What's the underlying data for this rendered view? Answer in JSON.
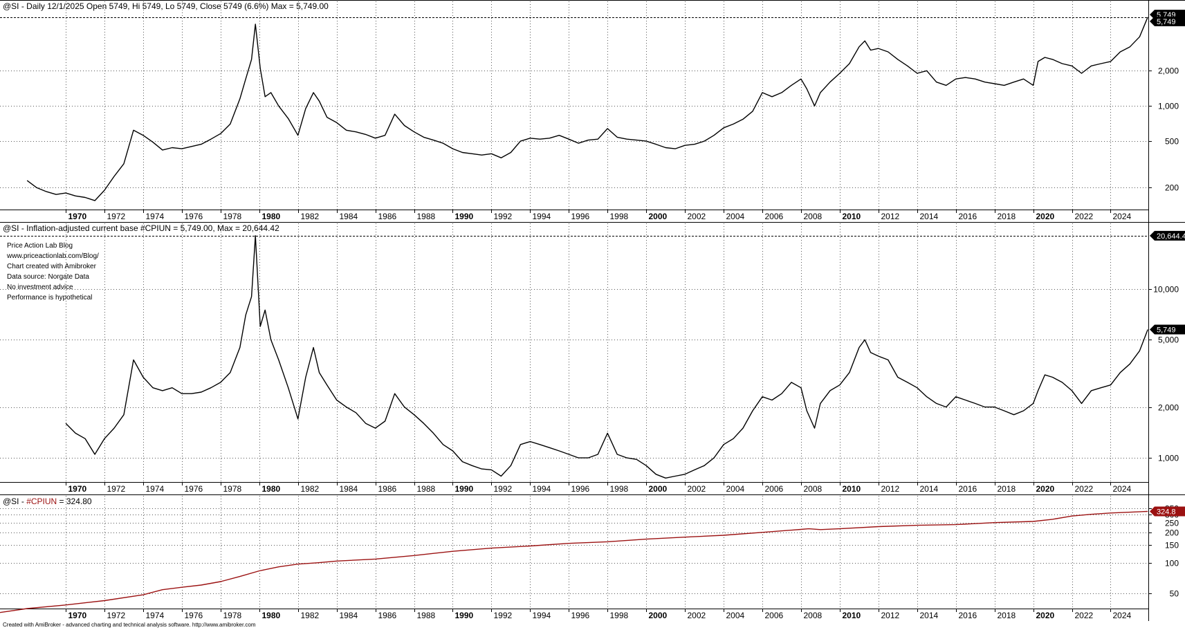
{
  "chart_data": [
    {
      "type": "line",
      "log_scale": true,
      "grid": true,
      "title": "@SI - Daily 12/1/2025 Open 5749, Hi 5749, Lo 5749, Close 5749 (6.6%) Max  = 5,749.00",
      "ylim": [
        130,
        6300
      ],
      "y_ticks": [
        200,
        500,
        1000,
        2000
      ],
      "y_tick_labels": [
        "200",
        "500",
        "1,000",
        "2,000"
      ],
      "last_badges": [
        "5,749",
        "5,749"
      ],
      "line_color": "#000000",
      "x": [
        1968.0,
        1968.5,
        1969.0,
        1969.5,
        1970.0,
        1970.5,
        1971.0,
        1971.5,
        1972.0,
        1972.5,
        1973.0,
        1973.5,
        1974.0,
        1974.5,
        1975.0,
        1975.5,
        1976.0,
        1976.5,
        1977.0,
        1977.5,
        1978.0,
        1978.5,
        1979.0,
        1979.3,
        1979.6,
        1979.8,
        1980.05,
        1980.3,
        1980.6,
        1981.0,
        1981.5,
        1982.0,
        1982.4,
        1982.8,
        1983.1,
        1983.5,
        1984.0,
        1984.5,
        1985.0,
        1985.5,
        1986.0,
        1986.5,
        1987.0,
        1987.5,
        1988.0,
        1988.5,
        1989.0,
        1989.5,
        1990.0,
        1990.5,
        1991.0,
        1991.5,
        1992.0,
        1992.5,
        1993.0,
        1993.5,
        1994.0,
        1994.5,
        1995.0,
        1995.5,
        1996.0,
        1996.5,
        1997.0,
        1997.5,
        1998.0,
        1998.5,
        1999.0,
        1999.5,
        2000.0,
        2000.5,
        2001.0,
        2001.5,
        2002.0,
        2002.5,
        2003.0,
        2003.5,
        2004.0,
        2004.5,
        2005.0,
        2005.5,
        2006.0,
        2006.5,
        2007.0,
        2007.5,
        2008.0,
        2008.3,
        2008.7,
        2009.0,
        2009.5,
        2010.0,
        2010.5,
        2011.0,
        2011.3,
        2011.6,
        2012.0,
        2012.5,
        2013.0,
        2013.5,
        2014.0,
        2014.5,
        2015.0,
        2015.5,
        2016.0,
        2016.5,
        2017.0,
        2017.5,
        2018.0,
        2018.5,
        2019.0,
        2019.5,
        2020.0,
        2020.25,
        2020.6,
        2021.0,
        2021.5,
        2022.0,
        2022.5,
        2023.0,
        2023.5,
        2024.0,
        2024.5,
        2025.0,
        2025.5,
        2025.92
      ],
      "y": [
        230,
        200,
        185,
        175,
        180,
        170,
        165,
        155,
        190,
        250,
        320,
        620,
        560,
        490,
        420,
        440,
        430,
        450,
        470,
        520,
        580,
        700,
        1150,
        1700,
        2500,
        5000,
        2100,
        1200,
        1300,
        1000,
        780,
        560,
        950,
        1300,
        1100,
        800,
        720,
        620,
        600,
        570,
        530,
        560,
        850,
        680,
        600,
        540,
        510,
        480,
        430,
        400,
        390,
        380,
        390,
        360,
        400,
        500,
        530,
        520,
        530,
        560,
        520,
        480,
        510,
        520,
        640,
        540,
        520,
        510,
        500,
        470,
        440,
        430,
        460,
        470,
        500,
        560,
        650,
        700,
        770,
        900,
        1300,
        1200,
        1300,
        1500,
        1700,
        1400,
        1000,
        1300,
        1600,
        1900,
        2300,
        3200,
        3600,
        3000,
        3100,
        2900,
        2500,
        2200,
        1900,
        2000,
        1600,
        1500,
        1700,
        1750,
        1700,
        1600,
        1550,
        1500,
        1600,
        1700,
        1500,
        2400,
        2600,
        2500,
        2300,
        2200,
        1900,
        2200,
        2300,
        2400,
        2900,
        3200,
        3900,
        5749
      ]
    },
    {
      "type": "line",
      "log_scale": true,
      "grid": true,
      "title": "@SI - Inflation-adjusted current base #CPIUN = 5,749.00, Max  = 20,644.42",
      "ylim": [
        720,
        21000
      ],
      "y_ticks": [
        1000,
        2000,
        5000,
        10000
      ],
      "y_tick_labels": [
        "1,000",
        "2,000",
        "5,000",
        "10,000"
      ],
      "max_badge": "20,644.4",
      "last_badge": "5,749",
      "line_color": "#000000",
      "x": [
        1970.0,
        1970.5,
        1971.0,
        1971.5,
        1972.0,
        1972.5,
        1973.0,
        1973.5,
        1974.0,
        1974.5,
        1975.0,
        1975.5,
        1976.0,
        1976.5,
        1977.0,
        1977.5,
        1978.0,
        1978.5,
        1979.0,
        1979.3,
        1979.6,
        1979.8,
        1980.05,
        1980.3,
        1980.6,
        1981.0,
        1981.5,
        1982.0,
        1982.4,
        1982.8,
        1983.1,
        1983.5,
        1984.0,
        1984.5,
        1985.0,
        1985.5,
        1986.0,
        1986.5,
        1987.0,
        1987.5,
        1988.0,
        1988.5,
        1989.0,
        1989.5,
        1990.0,
        1990.5,
        1991.0,
        1991.5,
        1992.0,
        1992.5,
        1993.0,
        1993.5,
        1994.0,
        1994.5,
        1995.0,
        1995.5,
        1996.0,
        1996.5,
        1997.0,
        1997.5,
        1998.0,
        1998.5,
        1999.0,
        1999.5,
        2000.0,
        2000.5,
        2001.0,
        2001.5,
        2002.0,
        2002.5,
        2003.0,
        2003.5,
        2004.0,
        2004.5,
        2005.0,
        2005.5,
        2006.0,
        2006.5,
        2007.0,
        2007.5,
        2008.0,
        2008.3,
        2008.7,
        2009.0,
        2009.5,
        2010.0,
        2010.5,
        2011.0,
        2011.3,
        2011.6,
        2012.0,
        2012.5,
        2013.0,
        2013.5,
        2014.0,
        2014.5,
        2015.0,
        2015.5,
        2016.0,
        2016.5,
        2017.0,
        2017.5,
        2018.0,
        2018.5,
        2019.0,
        2019.5,
        2020.0,
        2020.25,
        2020.6,
        2021.0,
        2021.5,
        2022.0,
        2022.5,
        2023.0,
        2023.5,
        2024.0,
        2024.5,
        2025.0,
        2025.5,
        2025.92
      ],
      "y": [
        1600,
        1400,
        1300,
        1050,
        1300,
        1500,
        1800,
        3800,
        3000,
        2600,
        2500,
        2600,
        2400,
        2400,
        2450,
        2600,
        2800,
        3200,
        4500,
        7000,
        9000,
        20644,
        6000,
        7500,
        5000,
        3800,
        2600,
        1700,
        3000,
        4500,
        3200,
        2700,
        2200,
        2000,
        1850,
        1600,
        1500,
        1650,
        2400,
        2000,
        1800,
        1600,
        1400,
        1200,
        1100,
        950,
        900,
        860,
        850,
        780,
        900,
        1200,
        1250,
        1200,
        1150,
        1100,
        1050,
        1000,
        1000,
        1050,
        1400,
        1050,
        1000,
        980,
        900,
        800,
        760,
        780,
        800,
        850,
        900,
        1000,
        1200,
        1300,
        1500,
        1900,
        2300,
        2200,
        2400,
        2800,
        2600,
        1900,
        1500,
        2100,
        2500,
        2700,
        3200,
        4500,
        5000,
        4200,
        4000,
        3800,
        3000,
        2800,
        2600,
        2300,
        2100,
        2000,
        2300,
        2200,
        2100,
        2000,
        2000,
        1900,
        1800,
        1900,
        2100,
        2500,
        3100,
        3000,
        2800,
        2500,
        2100,
        2500,
        2600,
        2700,
        3200,
        3600,
        4300,
        5749
      ]
    },
    {
      "type": "line",
      "log_scale": true,
      "grid": true,
      "title": "@SI - #CPIUN = 324.80",
      "ylim": [
        35,
        360
      ],
      "y_ticks": [
        50,
        100,
        150,
        200,
        250,
        300,
        350
      ],
      "y_tick_labels": [
        "50",
        "100",
        "150",
        "200",
        "250",
        "300",
        "350"
      ],
      "last_badge": "324.8",
      "line_color": "#9b1111",
      "x": [
        1966.0,
        1968.0,
        1970.0,
        1972.0,
        1974.0,
        1975.0,
        1976.0,
        1977.0,
        1978.0,
        1979.0,
        1980.0,
        1981.0,
        1982.0,
        1983.0,
        1984.0,
        1986.0,
        1988.0,
        1990.0,
        1992.0,
        1994.0,
        1996.0,
        1998.0,
        2000.0,
        2002.0,
        2004.0,
        2006.0,
        2008.0,
        2008.4,
        2009.0,
        2010.0,
        2012.0,
        2014.0,
        2016.0,
        2018.0,
        2020.0,
        2021.0,
        2022.0,
        2023.0,
        2024.0,
        2025.92
      ],
      "y": [
        32,
        35,
        38,
        42,
        48,
        54,
        57,
        60,
        65,
        73,
        83,
        91,
        97,
        100,
        104,
        109,
        118,
        130,
        140,
        147,
        156,
        162,
        172,
        180,
        188,
        201,
        215,
        218,
        214,
        218,
        229,
        236,
        240,
        251,
        258,
        271,
        292,
        304,
        313,
        324.8
      ]
    }
  ],
  "x_axis": {
    "ticks": [
      1970,
      1972,
      1974,
      1976,
      1978,
      1980,
      1982,
      1984,
      1986,
      1988,
      1990,
      1992,
      1994,
      1996,
      1998,
      2000,
      2002,
      2004,
      2006,
      2008,
      2010,
      2012,
      2014,
      2016,
      2018,
      2020,
      2022,
      2024
    ],
    "tick_labels": [
      "1970",
      "1972",
      "1974",
      "1976",
      "1978",
      "1980",
      "1982",
      "1984",
      "1986",
      "1988",
      "1990",
      "1992",
      "1994",
      "1996",
      "1998",
      "2000",
      "2002",
      "2004",
      "2006",
      "2008",
      "2010",
      "2012",
      "2014",
      "2016",
      "2018",
      "2020",
      "2022",
      "2024"
    ],
    "bold_ticks": [
      1970,
      1980,
      1990,
      2000,
      2010,
      2020
    ]
  },
  "notes": {
    "lines": [
      "Price Action Lab Blog",
      "www.priceactionlab.com/Blog/",
      "Chart created with Amibroker",
      "Data source: Norgate Data",
      "No investment advice",
      "Performance is hypothetical"
    ]
  },
  "footer": "Created with AmiBroker - advanced charting and technical analysis software. http://www.amibroker.com"
}
